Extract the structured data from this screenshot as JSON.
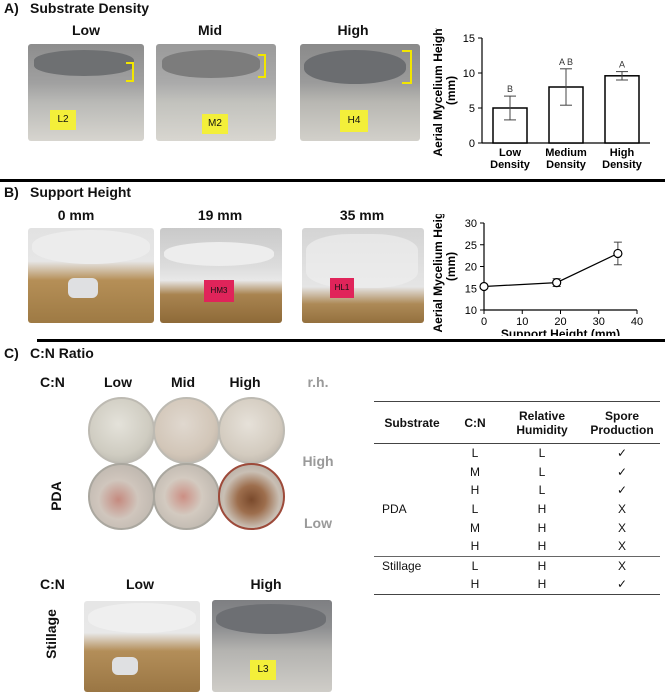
{
  "panel_a": {
    "label": "A)",
    "title": "Substrate Density",
    "photos": [
      "Low",
      "Mid",
      "High"
    ],
    "photo_tags": [
      "L2",
      "M2",
      "H4"
    ],
    "colors": {
      "tag": "#f3ef3a",
      "bracket": "#f2e600"
    }
  },
  "panel_b": {
    "label": "B)",
    "title": "Support Height",
    "photos": [
      "0 mm",
      "19 mm",
      "35 mm"
    ],
    "photo_tags": [
      "HM3",
      "HL1"
    ],
    "colors": {
      "tag": "#e0245a"
    }
  },
  "panel_c": {
    "label": "C)",
    "title": "C:N Ratio",
    "pda": {
      "cn_header": "C:N",
      "columns": [
        "Low",
        "Mid",
        "High"
      ],
      "rh_header": "r.h.",
      "rh_rows": [
        "High",
        "Low"
      ],
      "row_label": "PDA"
    },
    "stillage": {
      "cn_header": "C:N",
      "columns": [
        "Low",
        "High"
      ],
      "row_label": "Stillage",
      "photo_tag": "L3"
    },
    "table": {
      "headers": [
        "Substrate",
        "C:N",
        "Relative Humidity",
        "Spore Production"
      ],
      "rows": [
        {
          "substrate": "",
          "cn": "L",
          "rh": "L",
          "spore": "✓"
        },
        {
          "substrate": "",
          "cn": "M",
          "rh": "L",
          "spore": "✓"
        },
        {
          "substrate": "",
          "cn": "H",
          "rh": "L",
          "spore": "✓"
        },
        {
          "substrate": "PDA",
          "cn": "L",
          "rh": "H",
          "spore": "X"
        },
        {
          "substrate": "",
          "cn": "M",
          "rh": "H",
          "spore": "X"
        },
        {
          "substrate": "",
          "cn": "H",
          "rh": "H",
          "spore": "X"
        },
        {
          "substrate": "Stillage",
          "cn": "L",
          "rh": "H",
          "spore": "X"
        },
        {
          "substrate": "",
          "cn": "H",
          "rh": "H",
          "spore": "✓"
        }
      ]
    }
  },
  "chart_data": [
    {
      "type": "bar",
      "categories": [
        "Low Density",
        "Medium Density",
        "High Density"
      ],
      "category_lines": [
        [
          "Low",
          "Density"
        ],
        [
          "Medium",
          "Density"
        ],
        [
          "High",
          "Density"
        ]
      ],
      "values": [
        5.0,
        8.0,
        9.6
      ],
      "errors": [
        1.7,
        2.6,
        0.6
      ],
      "letters": [
        "B",
        "A B",
        "A"
      ],
      "ylabel": "Aerial Mycelium Height (mm)",
      "ylabel_lines": [
        "Aerial Mycelium Height",
        "(mm)"
      ],
      "xlabel": "",
      "ylim": [
        0,
        15
      ],
      "yticks": [
        0,
        5,
        10,
        15
      ],
      "bar_color": "#ffffff",
      "edge_color": "#000000"
    },
    {
      "type": "line",
      "x": [
        0,
        19,
        35
      ],
      "y": [
        15.4,
        16.3,
        23.0
      ],
      "errors": [
        0.3,
        0.9,
        2.6
      ],
      "xlabel": "Support Height (mm)",
      "ylabel": "Aerial Mycelium Height (mm)",
      "ylabel_lines": [
        "Aerial Mycelium Height",
        "(mm)"
      ],
      "xlim": [
        0,
        40
      ],
      "ylim": [
        10,
        30
      ],
      "xticks": [
        0,
        10,
        20,
        30,
        40
      ],
      "yticks": [
        10,
        15,
        20,
        25,
        30
      ],
      "marker": "open-circle"
    }
  ]
}
